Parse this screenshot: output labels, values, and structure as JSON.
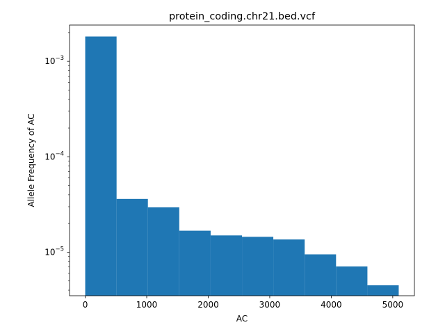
{
  "chart_data": {
    "type": "bar",
    "title": "protein_coding.chr21.bed.vcf",
    "xlabel": "AC",
    "ylabel": "Allele Frequency of AC",
    "yscale": "log",
    "color": "#1f77b4",
    "bins": [
      {
        "x0": 0,
        "x1": 510,
        "value": 0.00182
      },
      {
        "x0": 510,
        "x1": 1019,
        "value": 3.62e-05
      },
      {
        "x0": 1019,
        "x1": 1529,
        "value": 2.95e-05
      },
      {
        "x0": 1529,
        "x1": 2039,
        "value": 1.68e-05
      },
      {
        "x0": 2039,
        "x1": 2549,
        "value": 1.5e-05
      },
      {
        "x0": 2549,
        "x1": 3058,
        "value": 1.45e-05
      },
      {
        "x0": 3058,
        "x1": 3568,
        "value": 1.36e-05
      },
      {
        "x0": 3568,
        "x1": 4078,
        "value": 9.5e-06
      },
      {
        "x0": 4078,
        "x1": 4588,
        "value": 7.1e-06
      },
      {
        "x0": 4588,
        "x1": 5097,
        "value": 4.5e-06
      }
    ],
    "xlim": [
      -255,
      5352
    ],
    "ylim": [
      3.5e-06,
      0.0024
    ],
    "x_ticks": [
      0,
      1000,
      2000,
      3000,
      4000,
      5000
    ],
    "x_tick_labels": [
      "0",
      "1000",
      "2000",
      "3000",
      "4000",
      "5000"
    ],
    "y_major_ticks": [
      1e-05,
      0.0001,
      0.001
    ],
    "y_tick_labels": [
      {
        "base": "10",
        "exp": "−5"
      },
      {
        "base": "10",
        "exp": "−4"
      },
      {
        "base": "10",
        "exp": "−3"
      }
    ],
    "grid": false,
    "legend": "none"
  }
}
